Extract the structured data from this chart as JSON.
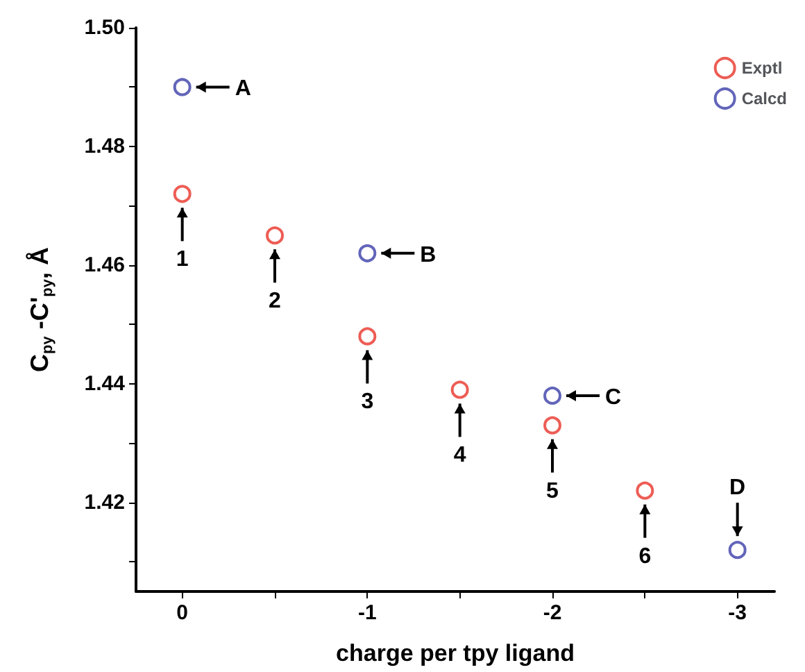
{
  "chart_data": {
    "type": "scatter",
    "xlabel": "charge per tpy ligand",
    "ylabel": "C$_{py}$ -C'$_{py}$, Å",
    "series": [
      {
        "name": "Exptl",
        "color": "#e8352b",
        "x": [
          0,
          -0.5,
          -1,
          -1.5,
          -2,
          -2.5
        ],
        "values": [
          1.472,
          1.465,
          1.448,
          1.439,
          1.433,
          1.422
        ]
      },
      {
        "name": "Calcd",
        "color": "#3b3fa8",
        "x": [
          0,
          -1,
          -2,
          -3
        ],
        "values": [
          1.49,
          1.462,
          1.438,
          1.412
        ]
      }
    ],
    "xlim": [
      0.25,
      -3.2
    ],
    "xticks": [
      0,
      {
        "value": -0.5,
        "label": null
      },
      -1,
      {
        "value": -1.5,
        "label": null
      },
      -2,
      {
        "value": -2.5,
        "label": null
      },
      -3
    ],
    "ylim": [
      1.405,
      1.5
    ],
    "yticks": [
      {
        "value": 1.41,
        "label": null
      },
      1.42,
      {
        "value": 1.43,
        "label": null
      },
      1.44,
      {
        "value": 1.45,
        "label": null
      },
      1.46,
      {
        "value": 1.47,
        "label": null
      },
      1.48,
      {
        "value": 1.49,
        "label": null
      },
      {
        "value": 1.5,
        "label": "1.50"
      }
    ],
    "annotations": [
      {
        "text": "A",
        "x": 0,
        "y": 1.49
      },
      {
        "text": "B",
        "x": -1,
        "y": 1.462
      },
      {
        "text": "C",
        "x": -2,
        "y": 1.438
      },
      {
        "text": "D",
        "x": -3,
        "y": 1.412
      },
      {
        "text": "1",
        "x": 0,
        "y": 1.472
      },
      {
        "text": "2",
        "x": -0.5,
        "y": 1.465
      },
      {
        "text": "3",
        "x": -1,
        "y": 1.448
      },
      {
        "text": "4",
        "x": -1.5,
        "y": 1.439
      },
      {
        "text": "5",
        "x": -2,
        "y": 1.433
      },
      {
        "text": "6",
        "x": -2.5,
        "y": 1.422
      }
    ],
    "marker": "circle",
    "grid": false,
    "legend": "top right"
  }
}
